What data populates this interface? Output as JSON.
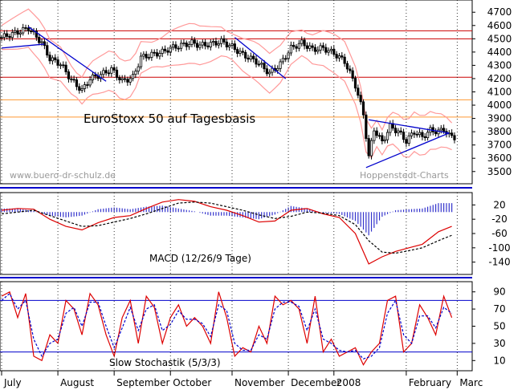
{
  "chart_data": {
    "type": "line",
    "title": "EuroStoxx 50 auf Tagesbasis",
    "watermark_left": "www.buero-dr-schulz.de",
    "watermark_right": "Hoppenstedt-Charts",
    "months": [
      {
        "label": "July",
        "day": 0
      },
      {
        "label": "August",
        "day": 21
      },
      {
        "label": "September",
        "day": 42
      },
      {
        "label": "October",
        "day": 63
      },
      {
        "label": "November",
        "day": 86
      },
      {
        "label": "December",
        "day": 107
      },
      {
        "label": "2008",
        "day": 124
      },
      {
        "label": "February",
        "day": 151
      },
      {
        "label": "Marc",
        "day": 170
      }
    ],
    "day_range": [
      0,
      175
    ],
    "price_panel": {
      "ylim": [
        3420,
        4780
      ],
      "yticks": [
        3500,
        3600,
        3700,
        3800,
        3900,
        4000,
        4100,
        4200,
        4300,
        4400,
        4500,
        4600,
        4700
      ],
      "red_lines": [
        4560,
        4500,
        4210
      ],
      "orange_lines": [
        4040,
        3910
      ],
      "series": {
        "name": "EuroStoxx 50",
        "points": [
          [
            0,
            4510
          ],
          [
            6,
            4550
          ],
          [
            10,
            4580
          ],
          [
            15,
            4470
          ],
          [
            18,
            4350
          ],
          [
            22,
            4310
          ],
          [
            26,
            4190
          ],
          [
            30,
            4110
          ],
          [
            33,
            4200
          ],
          [
            37,
            4230
          ],
          [
            41,
            4270
          ],
          [
            45,
            4180
          ],
          [
            49,
            4210
          ],
          [
            52,
            4360
          ],
          [
            56,
            4380
          ],
          [
            60,
            4400
          ],
          [
            63,
            4430
          ],
          [
            67,
            4450
          ],
          [
            71,
            4470
          ],
          [
            74,
            4450
          ],
          [
            78,
            4460
          ],
          [
            82,
            4480
          ],
          [
            86,
            4440
          ],
          [
            90,
            4380
          ],
          [
            95,
            4330
          ],
          [
            100,
            4240
          ],
          [
            104,
            4310
          ],
          [
            108,
            4430
          ],
          [
            112,
            4470
          ],
          [
            116,
            4420
          ],
          [
            120,
            4430
          ],
          [
            124,
            4390
          ],
          [
            128,
            4330
          ],
          [
            132,
            4150
          ],
          [
            135,
            3930
          ],
          [
            137,
            3610
          ],
          [
            139,
            3820
          ],
          [
            142,
            3720
          ],
          [
            145,
            3840
          ],
          [
            148,
            3800
          ],
          [
            151,
            3730
          ],
          [
            154,
            3800
          ],
          [
            157,
            3760
          ],
          [
            160,
            3810
          ],
          [
            163,
            3800
          ],
          [
            165,
            3820
          ],
          [
            167,
            3770
          ],
          [
            169,
            3760
          ]
        ]
      },
      "trendlines": [
        [
          [
            0,
            4430
          ],
          [
            16,
            4460
          ]
        ],
        [
          [
            10,
            4590
          ],
          [
            39,
            4180
          ]
        ],
        [
          [
            87,
            4510
          ],
          [
            106,
            4200
          ]
        ],
        [
          [
            136,
            3530
          ],
          [
            167,
            3790
          ]
        ],
        [
          [
            137,
            3890
          ],
          [
            167,
            3790
          ]
        ]
      ]
    },
    "macd_panel": {
      "label": "MACD (12/26/9 Tage)",
      "ylim": [
        -170,
        50
      ],
      "yticks": [
        20,
        -20,
        -60,
        -100,
        -140
      ],
      "macd": [
        [
          0,
          5
        ],
        [
          6,
          10
        ],
        [
          12,
          8
        ],
        [
          18,
          -20
        ],
        [
          24,
          -40
        ],
        [
          30,
          -50
        ],
        [
          36,
          -30
        ],
        [
          42,
          -15
        ],
        [
          48,
          -10
        ],
        [
          54,
          10
        ],
        [
          60,
          28
        ],
        [
          66,
          35
        ],
        [
          72,
          30
        ],
        [
          78,
          15
        ],
        [
          84,
          5
        ],
        [
          90,
          -10
        ],
        [
          96,
          -28
        ],
        [
          102,
          -25
        ],
        [
          108,
          5
        ],
        [
          114,
          10
        ],
        [
          120,
          -5
        ],
        [
          126,
          -15
        ],
        [
          132,
          -60
        ],
        [
          137,
          -145
        ],
        [
          142,
          -125
        ],
        [
          147,
          -110
        ],
        [
          152,
          -100
        ],
        [
          157,
          -90
        ],
        [
          163,
          -55
        ],
        [
          168,
          -40
        ]
      ],
      "signal": [
        [
          0,
          -5
        ],
        [
          6,
          0
        ],
        [
          12,
          5
        ],
        [
          18,
          -10
        ],
        [
          24,
          -25
        ],
        [
          30,
          -40
        ],
        [
          36,
          -38
        ],
        [
          42,
          -28
        ],
        [
          48,
          -18
        ],
        [
          54,
          -5
        ],
        [
          60,
          10
        ],
        [
          66,
          25
        ],
        [
          72,
          28
        ],
        [
          78,
          25
        ],
        [
          84,
          15
        ],
        [
          90,
          5
        ],
        [
          96,
          -8
        ],
        [
          102,
          -18
        ],
        [
          108,
          -12
        ],
        [
          114,
          0
        ],
        [
          120,
          -3
        ],
        [
          126,
          -10
        ],
        [
          132,
          -35
        ],
        [
          137,
          -80
        ],
        [
          142,
          -112
        ],
        [
          147,
          -115
        ],
        [
          152,
          -108
        ],
        [
          157,
          -100
        ],
        [
          163,
          -80
        ],
        [
          168,
          -65
        ]
      ]
    },
    "stoch_panel": {
      "label": "Slow Stochastik (5/3/3)",
      "ylim": [
        0,
        100
      ],
      "yticks": [
        90,
        70,
        50,
        30,
        10
      ],
      "levels": [
        80,
        20
      ],
      "k": [
        [
          0,
          85
        ],
        [
          3,
          90
        ],
        [
          6,
          60
        ],
        [
          9,
          88
        ],
        [
          12,
          15
        ],
        [
          15,
          10
        ],
        [
          18,
          40
        ],
        [
          21,
          30
        ],
        [
          24,
          80
        ],
        [
          27,
          70
        ],
        [
          30,
          40
        ],
        [
          33,
          88
        ],
        [
          36,
          75
        ],
        [
          39,
          40
        ],
        [
          42,
          15
        ],
        [
          45,
          60
        ],
        [
          48,
          80
        ],
        [
          51,
          30
        ],
        [
          54,
          85
        ],
        [
          57,
          72
        ],
        [
          60,
          30
        ],
        [
          63,
          60
        ],
        [
          66,
          75
        ],
        [
          69,
          50
        ],
        [
          72,
          60
        ],
        [
          75,
          50
        ],
        [
          78,
          30
        ],
        [
          81,
          90
        ],
        [
          84,
          60
        ],
        [
          87,
          15
        ],
        [
          90,
          25
        ],
        [
          93,
          20
        ],
        [
          96,
          50
        ],
        [
          99,
          30
        ],
        [
          102,
          85
        ],
        [
          105,
          75
        ],
        [
          108,
          80
        ],
        [
          111,
          70
        ],
        [
          114,
          30
        ],
        [
          117,
          85
        ],
        [
          120,
          20
        ],
        [
          123,
          35
        ],
        [
          126,
          15
        ],
        [
          129,
          20
        ],
        [
          132,
          25
        ],
        [
          135,
          5
        ],
        [
          138,
          20
        ],
        [
          141,
          30
        ],
        [
          144,
          80
        ],
        [
          147,
          85
        ],
        [
          150,
          20
        ],
        [
          153,
          30
        ],
        [
          156,
          75
        ],
        [
          159,
          60
        ],
        [
          162,
          40
        ],
        [
          165,
          85
        ],
        [
          168,
          60
        ]
      ],
      "d": [
        [
          0,
          80
        ],
        [
          3,
          88
        ],
        [
          6,
          70
        ],
        [
          9,
          80
        ],
        [
          12,
          35
        ],
        [
          15,
          15
        ],
        [
          18,
          30
        ],
        [
          21,
          35
        ],
        [
          24,
          65
        ],
        [
          27,
          72
        ],
        [
          30,
          50
        ],
        [
          33,
          78
        ],
        [
          36,
          78
        ],
        [
          39,
          50
        ],
        [
          42,
          25
        ],
        [
          45,
          48
        ],
        [
          48,
          72
        ],
        [
          51,
          45
        ],
        [
          54,
          70
        ],
        [
          57,
          75
        ],
        [
          60,
          45
        ],
        [
          63,
          52
        ],
        [
          66,
          68
        ],
        [
          69,
          58
        ],
        [
          72,
          58
        ],
        [
          75,
          53
        ],
        [
          78,
          38
        ],
        [
          81,
          75
        ],
        [
          84,
          68
        ],
        [
          87,
          30
        ],
        [
          90,
          22
        ],
        [
          93,
          22
        ],
        [
          96,
          40
        ],
        [
          99,
          35
        ],
        [
          102,
          70
        ],
        [
          105,
          78
        ],
        [
          108,
          78
        ],
        [
          111,
          73
        ],
        [
          114,
          45
        ],
        [
          117,
          70
        ],
        [
          120,
          35
        ],
        [
          123,
          30
        ],
        [
          126,
          22
        ],
        [
          129,
          20
        ],
        [
          132,
          22
        ],
        [
          135,
          12
        ],
        [
          138,
          15
        ],
        [
          141,
          25
        ],
        [
          144,
          65
        ],
        [
          147,
          80
        ],
        [
          150,
          40
        ],
        [
          153,
          30
        ],
        [
          156,
          62
        ],
        [
          159,
          62
        ],
        [
          162,
          48
        ],
        [
          165,
          72
        ],
        [
          168,
          65
        ]
      ]
    }
  }
}
